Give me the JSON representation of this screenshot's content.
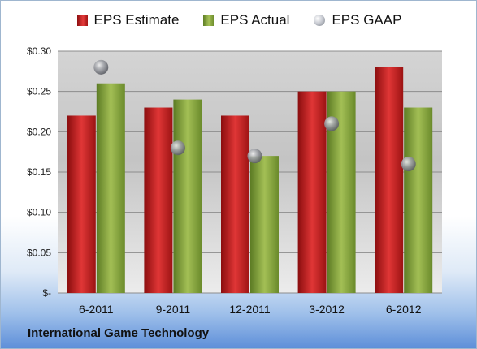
{
  "legend": [
    {
      "name": "EPS Estimate",
      "color": "#c81e1e"
    },
    {
      "name": "EPS Actual",
      "color": "#8aa83f"
    },
    {
      "name": "EPS GAAP",
      "color": "#a9adb5"
    }
  ],
  "company": "International Game Technology",
  "chart_data": {
    "type": "bar",
    "categories": [
      "6-2011",
      "9-2011",
      "12-2011",
      "3-2012",
      "6-2012"
    ],
    "series": [
      {
        "name": "EPS Estimate",
        "type": "bar",
        "values": [
          0.22,
          0.23,
          0.22,
          0.25,
          0.28
        ]
      },
      {
        "name": "EPS Actual",
        "type": "bar",
        "values": [
          0.26,
          0.24,
          0.17,
          0.25,
          0.23
        ]
      },
      {
        "name": "EPS GAAP",
        "type": "scatter",
        "values": [
          0.28,
          0.18,
          0.17,
          0.21,
          0.16
        ]
      }
    ],
    "ylim": [
      0,
      0.3
    ],
    "yticks": [
      0,
      0.05,
      0.1,
      0.15,
      0.2,
      0.25,
      0.3
    ],
    "ytick_labels": [
      "$-",
      "$0.05",
      "$0.10",
      "$0.15",
      "$0.20",
      "$0.25",
      "$0.30"
    ],
    "grid": true,
    "legend_position": "top"
  }
}
